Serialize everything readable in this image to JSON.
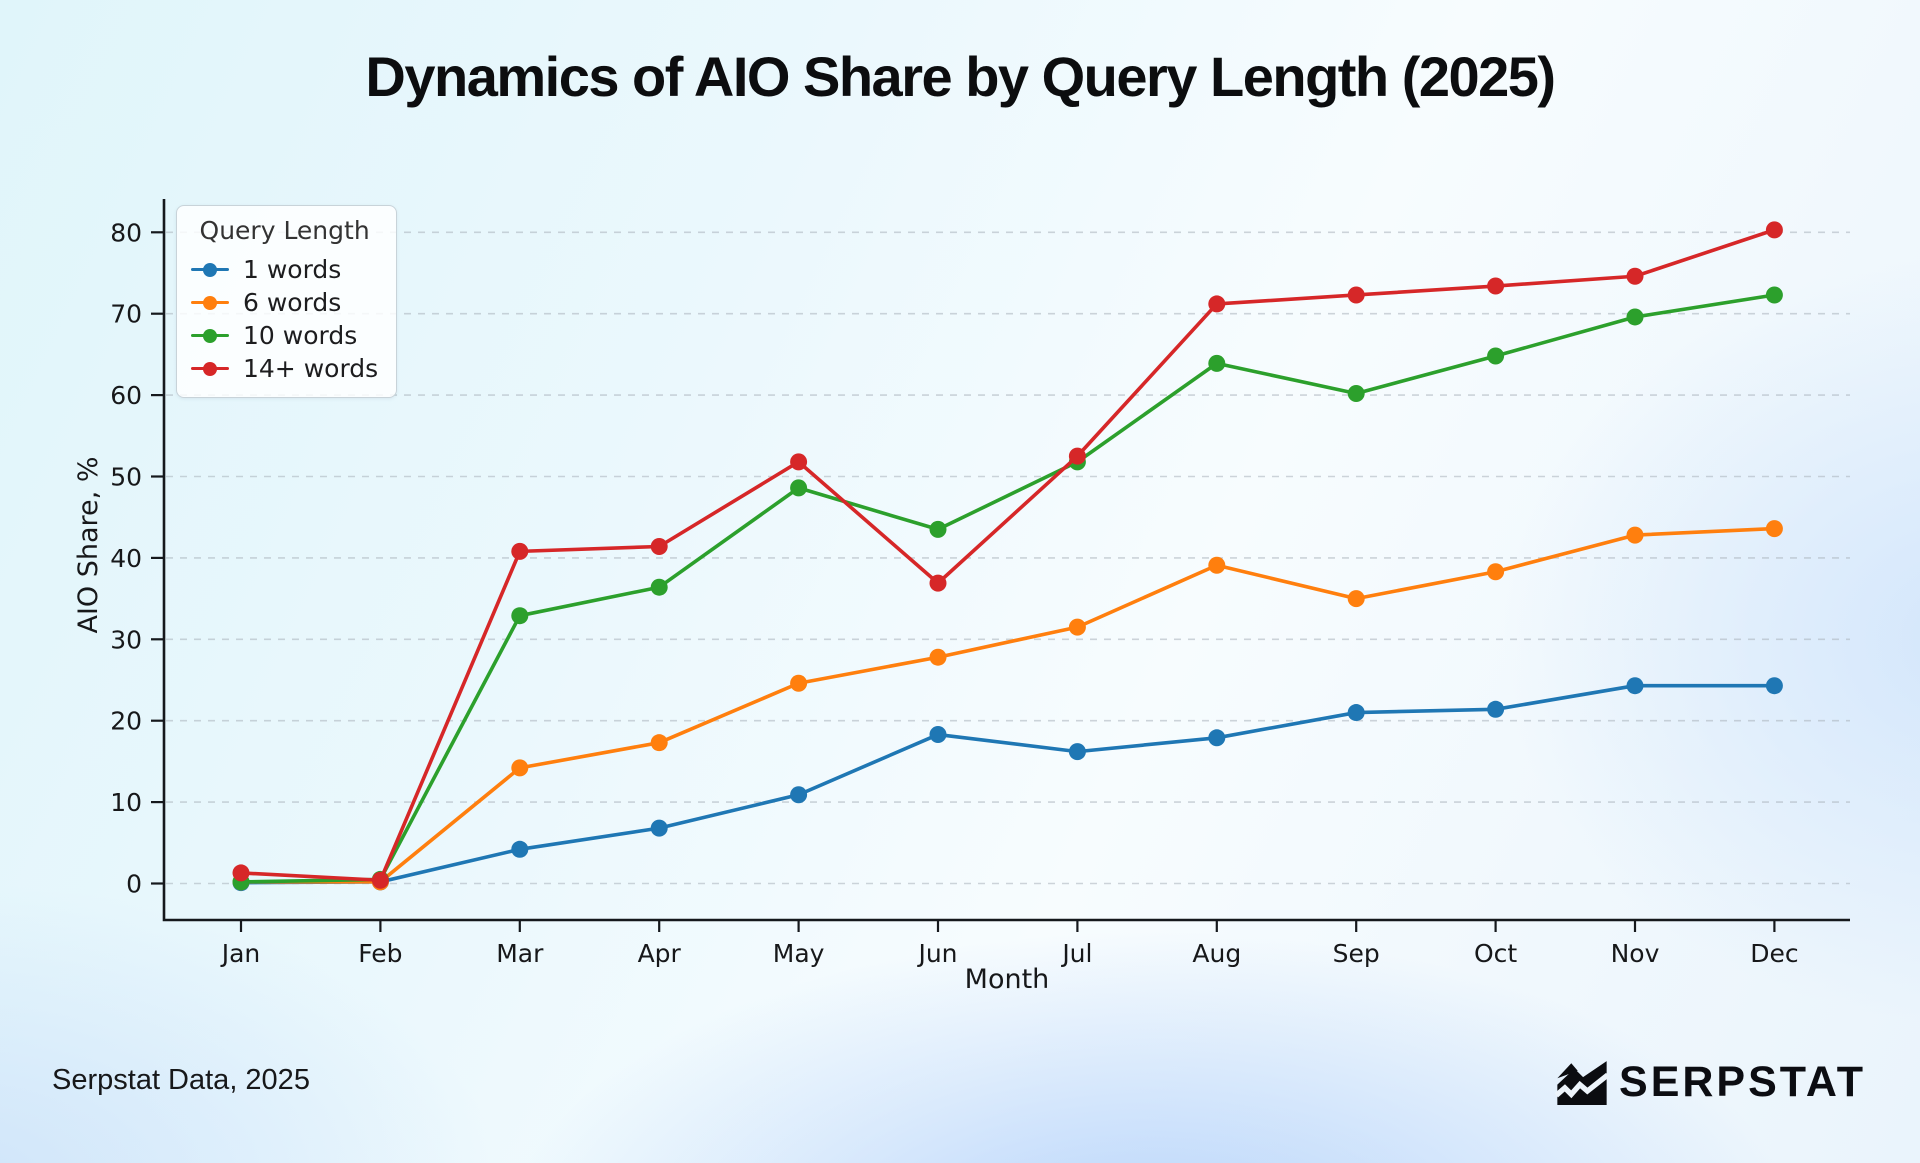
{
  "title": "Dynamics of AIO Share by Query Length (2025)",
  "footer": {
    "source": "Serpstat Data, 2025",
    "brand": "SERPSTAT"
  },
  "chart_data": {
    "type": "line",
    "title": "Dynamics of AIO Share by Query Length (2025)",
    "xlabel": "Month",
    "ylabel": "AIO Share, %",
    "categories": [
      "Jan",
      "Feb",
      "Mar",
      "Apr",
      "May",
      "Jun",
      "Jul",
      "Aug",
      "Sep",
      "Oct",
      "Nov",
      "Dec"
    ],
    "yticks": [
      0,
      10,
      20,
      30,
      40,
      50,
      60,
      70,
      80
    ],
    "ylim": [
      0,
      84
    ],
    "grid": "horizontal-dashed",
    "legend_title": "Query Length",
    "legend_position": "upper-left",
    "series": [
      {
        "name": "1 words",
        "color": "#1f77b4",
        "values": [
          0.1,
          0.2,
          4.2,
          6.8,
          10.9,
          18.3,
          16.2,
          17.9,
          21.0,
          21.4,
          24.3,
          24.3
        ]
      },
      {
        "name": "6 words",
        "color": "#ff7f0e",
        "values": [
          0.2,
          0.2,
          14.2,
          17.3,
          24.6,
          27.8,
          31.5,
          39.1,
          35.0,
          38.3,
          42.8,
          43.6
        ]
      },
      {
        "name": "10 words",
        "color": "#2ca02c",
        "values": [
          0.2,
          0.5,
          32.9,
          36.4,
          48.6,
          43.5,
          51.8,
          63.9,
          60.2,
          64.8,
          69.6,
          72.3
        ]
      },
      {
        "name": "14+ words",
        "color": "#d62728",
        "values": [
          1.3,
          0.4,
          40.8,
          41.4,
          51.8,
          36.9,
          52.5,
          71.2,
          72.3,
          73.4,
          74.6,
          80.3
        ]
      }
    ]
  }
}
